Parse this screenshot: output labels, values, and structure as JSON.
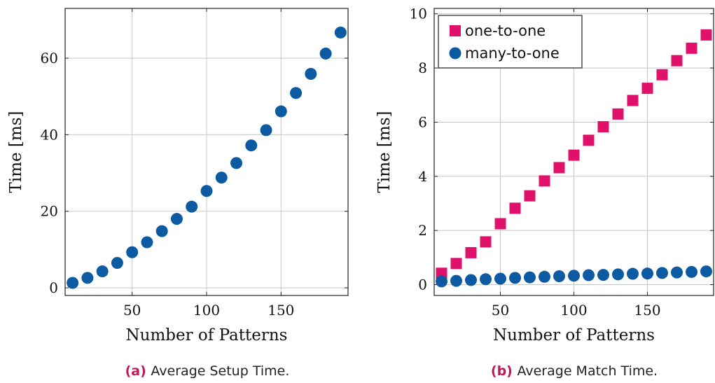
{
  "chart_data": [
    {
      "type": "scatter",
      "caption_letter": "(a)",
      "caption_text": "Average Setup Time.",
      "xlabel": "Number of Patterns",
      "ylabel": "Time [ms]",
      "xlim": [
        5,
        195
      ],
      "ylim": [
        -2,
        73
      ],
      "xticks": [
        50,
        100,
        150
      ],
      "yticks": [
        0,
        20,
        40,
        60
      ],
      "grid": true,
      "series": [
        {
          "marker": "circle",
          "color": "#0b5aa2",
          "x": [
            10,
            20,
            30,
            40,
            50,
            60,
            70,
            80,
            90,
            100,
            110,
            120,
            130,
            140,
            150,
            160,
            170,
            180,
            190
          ],
          "y": [
            1.3,
            2.6,
            4.3,
            6.5,
            9.3,
            11.9,
            14.8,
            18.0,
            21.2,
            25.3,
            28.8,
            32.6,
            37.2,
            41.2,
            46.1,
            50.9,
            55.9,
            61.2,
            66.7
          ]
        }
      ]
    },
    {
      "type": "scatter",
      "caption_letter": "(b)",
      "caption_text": "Average Match Time.",
      "xlabel": "Number of Patterns",
      "ylabel": "Time [ms]",
      "xlim": [
        5,
        195
      ],
      "ylim": [
        -0.4,
        10.2
      ],
      "xticks": [
        50,
        100,
        150
      ],
      "yticks": [
        0,
        2,
        4,
        6,
        8,
        10
      ],
      "grid": true,
      "legend_position": "top-left",
      "series": [
        {
          "name": "one-to-one",
          "marker": "square",
          "color": "#e0116a",
          "x": [
            10,
            20,
            30,
            40,
            50,
            60,
            70,
            80,
            90,
            100,
            110,
            120,
            130,
            140,
            150,
            160,
            170,
            180,
            190
          ],
          "y": [
            0.42,
            0.78,
            1.18,
            1.58,
            2.25,
            2.82,
            3.28,
            3.83,
            4.32,
            4.78,
            5.33,
            5.83,
            6.3,
            6.8,
            7.25,
            7.75,
            8.27,
            8.73,
            9.22
          ]
        },
        {
          "name": "many-to-one",
          "marker": "circle",
          "color": "#0b5aa2",
          "x": [
            10,
            20,
            30,
            40,
            50,
            60,
            70,
            80,
            90,
            100,
            110,
            120,
            130,
            140,
            150,
            160,
            170,
            180,
            190
          ],
          "y": [
            0.12,
            0.14,
            0.17,
            0.2,
            0.22,
            0.25,
            0.27,
            0.29,
            0.31,
            0.33,
            0.35,
            0.36,
            0.38,
            0.4,
            0.41,
            0.43,
            0.45,
            0.47,
            0.49
          ]
        }
      ]
    }
  ]
}
